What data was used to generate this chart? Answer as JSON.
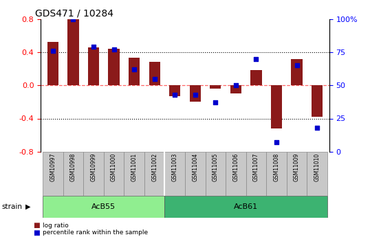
{
  "title": "GDS471 / 10284",
  "samples": [
    "GSM10997",
    "GSM10998",
    "GSM10999",
    "GSM11000",
    "GSM11001",
    "GSM11002",
    "GSM11003",
    "GSM11004",
    "GSM11005",
    "GSM11006",
    "GSM11007",
    "GSM11008",
    "GSM11009",
    "GSM11010"
  ],
  "log_ratio": [
    0.52,
    0.8,
    0.46,
    0.44,
    0.33,
    0.28,
    -0.13,
    -0.2,
    -0.04,
    -0.1,
    0.18,
    -0.52,
    0.32,
    -0.38
  ],
  "percentile": [
    76,
    100,
    79,
    77,
    62,
    55,
    43,
    43,
    37,
    50,
    70,
    7,
    65,
    18
  ],
  "bar_color": "#8B1A1A",
  "dot_color": "#0000CC",
  "ylim_left": [
    -0.8,
    0.8
  ],
  "ylim_right": [
    0,
    100
  ],
  "yticks_left": [
    -0.8,
    -0.4,
    0.0,
    0.4,
    0.8
  ],
  "yticks_right": [
    0,
    25,
    50,
    75,
    100
  ],
  "ytick_labels_right": [
    "0",
    "25",
    "50",
    "75",
    "100%"
  ],
  "dotted_lines": [
    -0.4,
    0.0,
    0.4
  ],
  "groups": [
    {
      "label": "AcB55",
      "start": 0,
      "end": 5,
      "color": "#90EE90"
    },
    {
      "label": "AcB61",
      "start": 6,
      "end": 13,
      "color": "#3CB371"
    }
  ],
  "strain_label": "strain",
  "strain_arrow": "▶",
  "legend_items": [
    {
      "label": "log ratio",
      "color": "#8B1A1A"
    },
    {
      "label": "percentile rank within the sample",
      "color": "#0000CC"
    }
  ],
  "sample_box_color": "#C8C8C8",
  "left_axis_color": "red",
  "right_axis_color": "blue",
  "zero_line_color": "#FF6666",
  "dotted_line_color": "black",
  "fig_width": 5.38,
  "fig_height": 3.45,
  "bar_width": 0.55
}
